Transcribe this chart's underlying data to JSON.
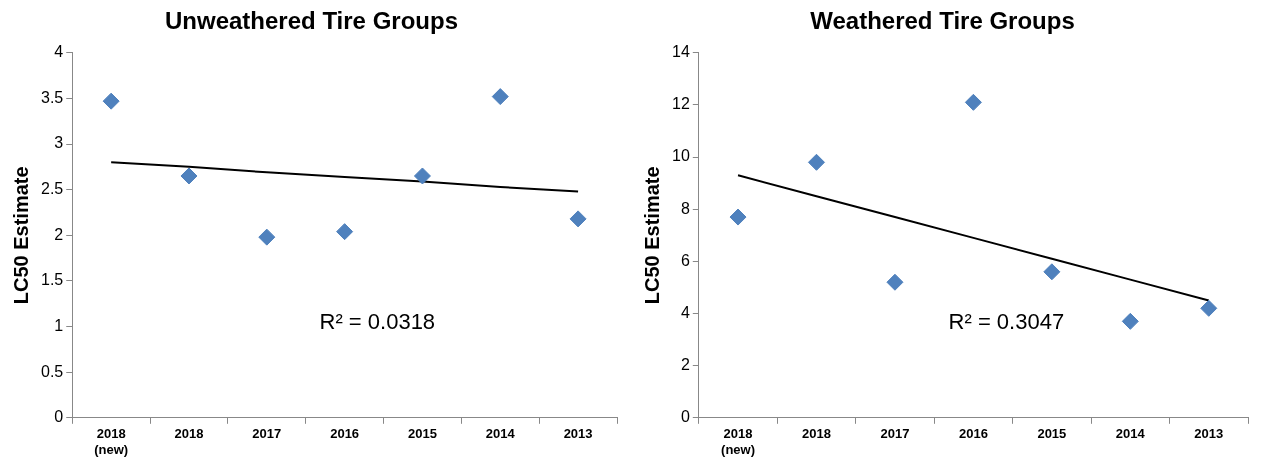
{
  "chart_data": [
    {
      "type": "scatter",
      "title": "Unweathered Tire Groups",
      "ylabel": "LC50 Estimate",
      "categories": [
        "2018\n(new)",
        "2018",
        "2017",
        "2016",
        "2015",
        "2014",
        "2013"
      ],
      "series": [
        {
          "color": "#4f81bd",
          "marker": "diamond",
          "values": [
            3.47,
            2.65,
            1.98,
            2.04,
            2.65,
            3.52,
            2.18
          ]
        },
        {
          "type": "line",
          "color": "#000000",
          "marker": "none",
          "values": [
            2.8,
            2.75,
            2.69,
            2.64,
            2.59,
            2.53,
            2.48
          ]
        }
      ],
      "ylim": [
        0,
        4
      ],
      "yticks": [
        0,
        0.5,
        1,
        1.5,
        2,
        2.5,
        3,
        3.5,
        4
      ],
      "annotations": [
        "R² = 0.0318"
      ]
    },
    {
      "type": "scatter",
      "title": "Weathered Tire Groups",
      "ylabel": "LC50 Estimate",
      "categories": [
        "2018\n(new)",
        "2018",
        "2017",
        "2016",
        "2015",
        "2014",
        "2013"
      ],
      "series": [
        {
          "color": "#4f81bd",
          "marker": "diamond",
          "values": [
            7.7,
            9.8,
            5.2,
            12.1,
            5.6,
            3.7,
            4.2
          ]
        },
        {
          "type": "line",
          "color": "#000000",
          "marker": "none",
          "values": [
            9.3,
            8.5,
            7.7,
            6.9,
            6.1,
            5.3,
            4.5
          ]
        }
      ],
      "ylim": [
        0,
        14
      ],
      "yticks": [
        0,
        2,
        4,
        6,
        8,
        10,
        12,
        14
      ],
      "annotations": [
        "R² = 0.3047"
      ]
    }
  ]
}
